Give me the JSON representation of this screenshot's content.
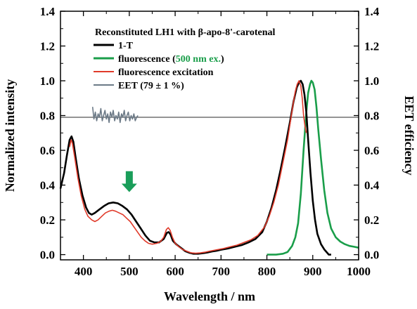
{
  "chart_data": {
    "type": "line",
    "title": "Reconstituted LH1 with β-apo-8'-carotenal",
    "xlabel": "Wavelength / nm",
    "ylabel": "Normalized intensity",
    "y2label": "EET efficiency",
    "xlim": [
      350,
      1000
    ],
    "ylim": [
      -0.03,
      1.4
    ],
    "y2lim": [
      -0.03,
      1.4
    ],
    "xticks": [
      "400",
      "500",
      "600",
      "700",
      "800",
      "900",
      "1000"
    ],
    "yticks": [
      "0.0",
      "0.2",
      "0.4",
      "0.6",
      "0.8",
      "1.0",
      "1.2",
      "1.4"
    ],
    "y2ticks": [
      "0.0",
      "0.2",
      "0.4",
      "0.6",
      "0.8",
      "1.0",
      "1.2",
      "1.4"
    ],
    "reference_line_y": 0.79,
    "arrow": {
      "x": 500,
      "y_top": 0.48,
      "y_bottom": 0.36,
      "color": "#1a9e5a"
    },
    "series": [
      {
        "name": "1-T",
        "color": "#000000",
        "width": 2.6,
        "points": [
          [
            350,
            0.38
          ],
          [
            358,
            0.47
          ],
          [
            364,
            0.57
          ],
          [
            370,
            0.66
          ],
          [
            374,
            0.68
          ],
          [
            378,
            0.65
          ],
          [
            383,
            0.56
          ],
          [
            390,
            0.44
          ],
          [
            398,
            0.34
          ],
          [
            406,
            0.27
          ],
          [
            412,
            0.24
          ],
          [
            418,
            0.23
          ],
          [
            425,
            0.24
          ],
          [
            435,
            0.26
          ],
          [
            445,
            0.28
          ],
          [
            455,
            0.295
          ],
          [
            465,
            0.3
          ],
          [
            475,
            0.295
          ],
          [
            485,
            0.28
          ],
          [
            495,
            0.26
          ],
          [
            505,
            0.23
          ],
          [
            515,
            0.19
          ],
          [
            525,
            0.15
          ],
          [
            535,
            0.11
          ],
          [
            545,
            0.08
          ],
          [
            555,
            0.07
          ],
          [
            565,
            0.07
          ],
          [
            575,
            0.09
          ],
          [
            582,
            0.125
          ],
          [
            586,
            0.13
          ],
          [
            590,
            0.115
          ],
          [
            595,
            0.08
          ],
          [
            602,
            0.06
          ],
          [
            612,
            0.04
          ],
          [
            622,
            0.02
          ],
          [
            632,
            0.01
          ],
          [
            640,
            0.005
          ],
          [
            650,
            0.005
          ],
          [
            660,
            0.008
          ],
          [
            670,
            0.012
          ],
          [
            680,
            0.018
          ],
          [
            690,
            0.022
          ],
          [
            700,
            0.028
          ],
          [
            715,
            0.035
          ],
          [
            730,
            0.045
          ],
          [
            745,
            0.055
          ],
          [
            760,
            0.07
          ],
          [
            775,
            0.09
          ],
          [
            790,
            0.13
          ],
          [
            800,
            0.19
          ],
          [
            810,
            0.27
          ],
          [
            820,
            0.37
          ],
          [
            830,
            0.49
          ],
          [
            840,
            0.62
          ],
          [
            850,
            0.76
          ],
          [
            858,
            0.88
          ],
          [
            865,
            0.96
          ],
          [
            870,
            0.99
          ],
          [
            874,
            1.0
          ],
          [
            878,
            0.98
          ],
          [
            882,
            0.92
          ],
          [
            886,
            0.82
          ],
          [
            890,
            0.66
          ],
          [
            895,
            0.47
          ],
          [
            900,
            0.31
          ],
          [
            905,
            0.2
          ],
          [
            910,
            0.12
          ],
          [
            918,
            0.06
          ],
          [
            925,
            0.03
          ],
          [
            935,
            0.0
          ],
          [
            940,
            0.0
          ]
        ]
      },
      {
        "name": "fluorescence (500 nm ex.)",
        "color": "#1a9e4a",
        "width": 2.6,
        "points": [
          [
            800,
            0.0
          ],
          [
            820,
            0.0
          ],
          [
            835,
            0.005
          ],
          [
            845,
            0.015
          ],
          [
            855,
            0.05
          ],
          [
            862,
            0.1
          ],
          [
            868,
            0.18
          ],
          [
            874,
            0.35
          ],
          [
            880,
            0.6
          ],
          [
            886,
            0.82
          ],
          [
            890,
            0.93
          ],
          [
            894,
            0.98
          ],
          [
            897,
            1.0
          ],
          [
            900,
            0.99
          ],
          [
            904,
            0.95
          ],
          [
            908,
            0.85
          ],
          [
            912,
            0.72
          ],
          [
            918,
            0.55
          ],
          [
            925,
            0.37
          ],
          [
            932,
            0.24
          ],
          [
            940,
            0.15
          ],
          [
            950,
            0.1
          ],
          [
            960,
            0.075
          ],
          [
            970,
            0.06
          ],
          [
            980,
            0.05
          ],
          [
            990,
            0.045
          ],
          [
            1000,
            0.04
          ]
        ]
      },
      {
        "name": "fluorescence excitation",
        "color": "#e03a2a",
        "width": 1.6,
        "points": [
          [
            370,
            0.62
          ],
          [
            373,
            0.66
          ],
          [
            376,
            0.64
          ],
          [
            381,
            0.56
          ],
          [
            388,
            0.44
          ],
          [
            395,
            0.34
          ],
          [
            403,
            0.26
          ],
          [
            410,
            0.22
          ],
          [
            418,
            0.2
          ],
          [
            425,
            0.19
          ],
          [
            432,
            0.2
          ],
          [
            440,
            0.22
          ],
          [
            448,
            0.24
          ],
          [
            456,
            0.25
          ],
          [
            463,
            0.255
          ],
          [
            470,
            0.25
          ],
          [
            478,
            0.24
          ],
          [
            486,
            0.23
          ],
          [
            494,
            0.21
          ],
          [
            502,
            0.19
          ],
          [
            510,
            0.16
          ],
          [
            518,
            0.13
          ],
          [
            526,
            0.1
          ],
          [
            534,
            0.08
          ],
          [
            542,
            0.065
          ],
          [
            550,
            0.06
          ],
          [
            560,
            0.065
          ],
          [
            568,
            0.075
          ],
          [
            575,
            0.1
          ],
          [
            581,
            0.145
          ],
          [
            585,
            0.155
          ],
          [
            589,
            0.14
          ],
          [
            594,
            0.1
          ],
          [
            600,
            0.065
          ],
          [
            608,
            0.045
          ],
          [
            616,
            0.03
          ],
          [
            625,
            0.02
          ],
          [
            635,
            0.01
          ],
          [
            645,
            0.008
          ],
          [
            655,
            0.01
          ],
          [
            665,
            0.014
          ],
          [
            675,
            0.02
          ],
          [
            685,
            0.025
          ],
          [
            695,
            0.03
          ],
          [
            705,
            0.035
          ],
          [
            720,
            0.045
          ],
          [
            735,
            0.055
          ],
          [
            750,
            0.07
          ],
          [
            765,
            0.085
          ],
          [
            780,
            0.11
          ],
          [
            795,
            0.16
          ],
          [
            805,
            0.22
          ],
          [
            815,
            0.3
          ],
          [
            825,
            0.4
          ],
          [
            835,
            0.53
          ],
          [
            845,
            0.66
          ],
          [
            852,
            0.78
          ],
          [
            858,
            0.88
          ],
          [
            862,
            0.94
          ],
          [
            866,
            0.98
          ],
          [
            870,
            1.0
          ],
          [
            874,
            0.97
          ],
          [
            877,
            0.9
          ],
          [
            880,
            0.8
          ],
          [
            883,
            0.74
          ],
          [
            886,
            0.7
          ]
        ]
      },
      {
        "name": "EET (79 ± 1 %)",
        "color": "#6c7a87",
        "width": 1.6,
        "points": [
          [
            420,
            0.85
          ],
          [
            423,
            0.78
          ],
          [
            426,
            0.82
          ],
          [
            429,
            0.77
          ],
          [
            432,
            0.81
          ],
          [
            435,
            0.79
          ],
          [
            438,
            0.84
          ],
          [
            441,
            0.77
          ],
          [
            444,
            0.8
          ],
          [
            447,
            0.83
          ],
          [
            450,
            0.78
          ],
          [
            453,
            0.81
          ],
          [
            456,
            0.76
          ],
          [
            459,
            0.82
          ],
          [
            462,
            0.79
          ],
          [
            465,
            0.83
          ],
          [
            468,
            0.77
          ],
          [
            471,
            0.8
          ],
          [
            474,
            0.78
          ],
          [
            477,
            0.82
          ],
          [
            480,
            0.76
          ],
          [
            483,
            0.81
          ],
          [
            486,
            0.79
          ],
          [
            489,
            0.83
          ],
          [
            492,
            0.77
          ],
          [
            495,
            0.8
          ],
          [
            498,
            0.82
          ],
          [
            501,
            0.77
          ],
          [
            504,
            0.8
          ],
          [
            507,
            0.78
          ],
          [
            510,
            0.81
          ],
          [
            513,
            0.77
          ],
          [
            516,
            0.79
          ],
          [
            519,
            0.8
          ]
        ]
      }
    ]
  }
}
